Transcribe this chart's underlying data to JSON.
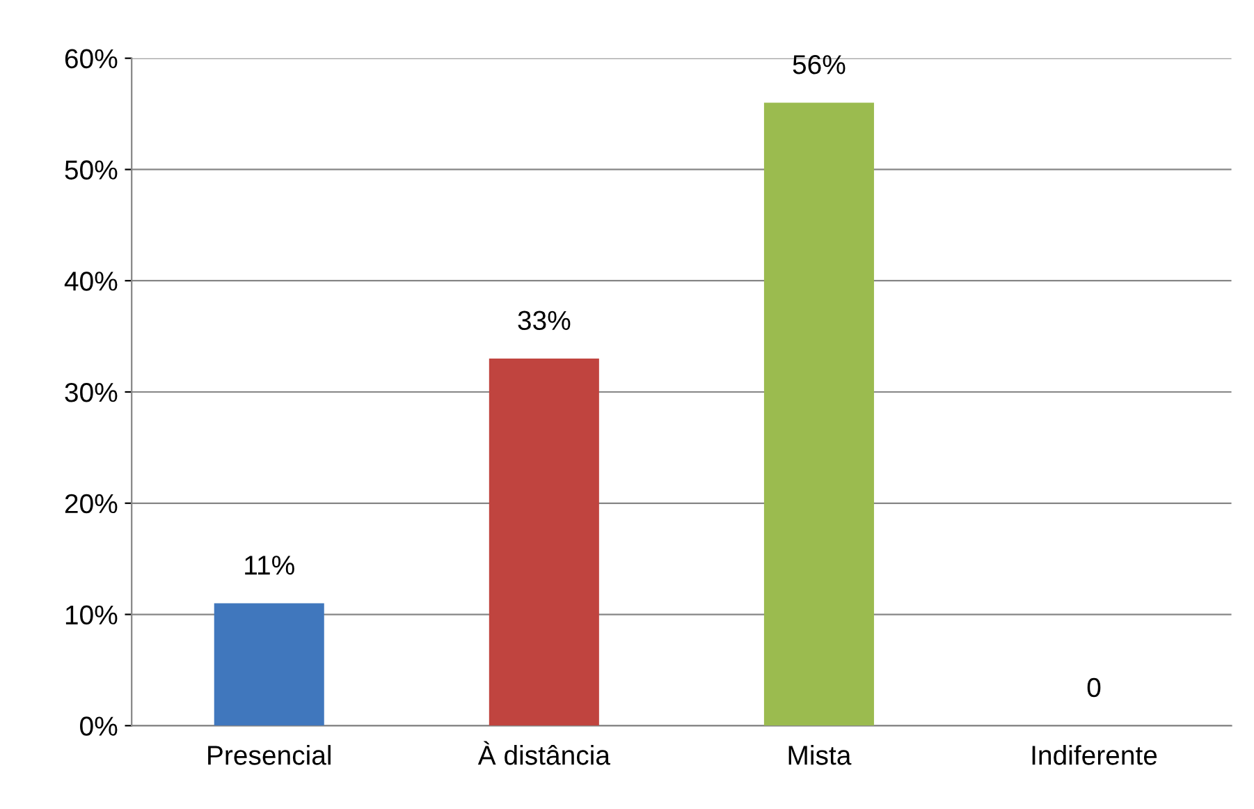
{
  "chart_data": {
    "type": "bar",
    "categories": [
      "Presencial",
      "À distância",
      "Mista",
      "Indiferente"
    ],
    "values": [
      11,
      33,
      56,
      0
    ],
    "colors": [
      "#4077bd",
      "#c0443f",
      "#9bbb4f",
      "#7f63a0"
    ],
    "value_labels": [
      "11%",
      "33%",
      "56%",
      "0"
    ],
    "ylim": [
      0,
      60
    ],
    "yticks": [
      {
        "value": 0,
        "label": "0%"
      },
      {
        "value": 10,
        "label": "10%"
      },
      {
        "value": 20,
        "label": "20%"
      },
      {
        "value": 30,
        "label": "30%"
      },
      {
        "value": 40,
        "label": "40%"
      },
      {
        "value": 50,
        "label": "50%"
      },
      {
        "value": 60,
        "label": "60%"
      }
    ],
    "grid": "y"
  }
}
